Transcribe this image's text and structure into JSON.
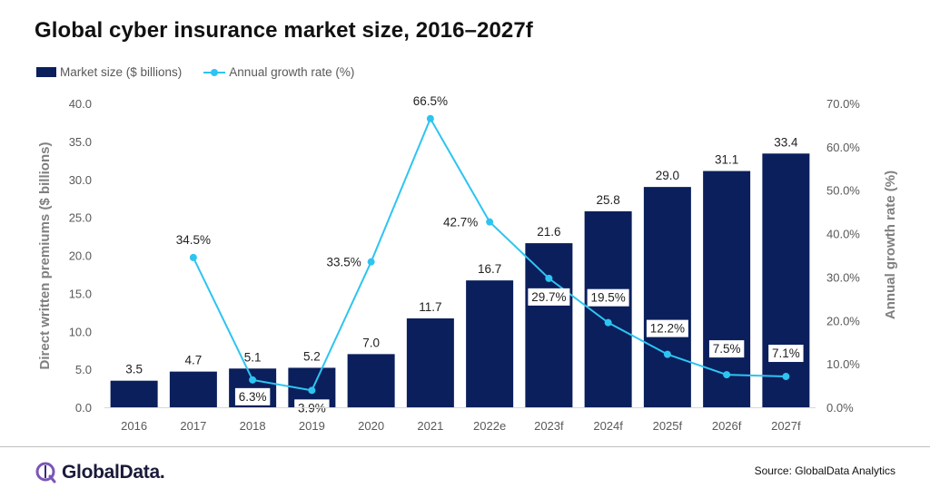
{
  "title": "Global cyber insurance market size, 2016–2027f",
  "legend": {
    "bar_label": "Market size ($ billions)",
    "line_label": "Annual growth rate (%)"
  },
  "colors": {
    "bar": "#0a1f5c",
    "line": "#2ec4f1"
  },
  "source": "Source: GlobalData Analytics",
  "logo": {
    "text": "GlobalData.",
    "icon": "globaldata-logo-icon"
  },
  "chart_data": {
    "type": "bar",
    "categories": [
      "2016",
      "2017",
      "2018",
      "2019",
      "2020",
      "2021",
      "2022e",
      "2023f",
      "2024f",
      "2025f",
      "2026f",
      "2027f"
    ],
    "series": [
      {
        "name": "Market size ($ billions)",
        "type": "bar",
        "axis": "left",
        "values": [
          3.5,
          4.7,
          5.1,
          5.2,
          7.0,
          11.7,
          16.7,
          21.6,
          25.8,
          29.0,
          31.1,
          33.4
        ],
        "labels": [
          "3.5",
          "4.7",
          "5.1",
          "5.2",
          "7.0",
          "11.7",
          "16.7",
          "21.6",
          "25.8",
          "29.0",
          "31.1",
          "33.4"
        ]
      },
      {
        "name": "Annual growth rate (%)",
        "type": "line",
        "axis": "right",
        "values": [
          null,
          34.5,
          6.3,
          3.9,
          33.5,
          66.5,
          42.7,
          29.7,
          19.5,
          12.2,
          7.5,
          7.1
        ],
        "labels": [
          "",
          "34.5%",
          "6.3%",
          "3.9%",
          "33.5%",
          "66.5%",
          "42.7%",
          "29.7%",
          "19.5%",
          "12.2%",
          "7.5%",
          "7.1%"
        ]
      }
    ],
    "ylabel": "Direct written premiums ($ billions)",
    "y2label": "Annual growth rate (%)",
    "ylim": [
      0,
      40
    ],
    "y2lim": [
      0,
      70
    ],
    "yticks": [
      "0.0",
      "5.0",
      "10.0",
      "15.0",
      "20.0",
      "25.0",
      "30.0",
      "35.0",
      "40.0"
    ],
    "y2ticks": [
      "0.0%",
      "10.0%",
      "20.0%",
      "30.0%",
      "40.0%",
      "50.0%",
      "60.0%",
      "70.0%"
    ],
    "grid": false,
    "legend_position": "top-left"
  }
}
